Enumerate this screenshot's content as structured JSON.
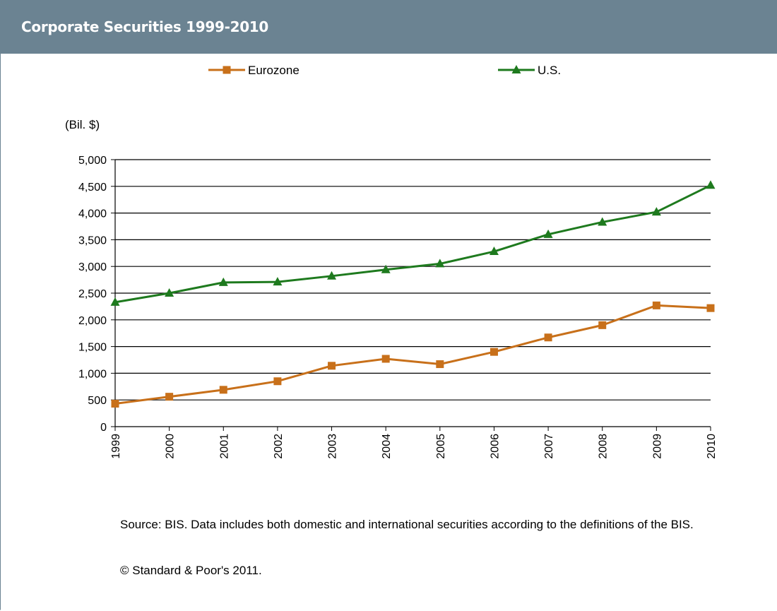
{
  "header": {
    "title": "Corporate Securities 1999-2010"
  },
  "footer": {
    "source": "Source: BIS. Data includes both domestic and international securities according to the definitions of the BIS.",
    "copyright": "© Standard & Poor's 2011."
  },
  "colors": {
    "header_bg": "#6b8392",
    "eurozone": "#c8701a",
    "us": "#1e7a1e"
  },
  "chart_data": {
    "type": "line",
    "title": "Corporate Securities 1999-2010",
    "ylabel": "(Bil. $)",
    "xlabel": "",
    "x": [
      "1999",
      "2000",
      "2001",
      "2002",
      "2003",
      "2004",
      "2005",
      "2006",
      "2007",
      "2008",
      "2009",
      "2010"
    ],
    "ylim": [
      0,
      5000
    ],
    "yticks": [
      "0",
      "500",
      "1,000",
      "1,500",
      "2,000",
      "2,500",
      "3,000",
      "3,500",
      "4,000",
      "4,500",
      "5,000"
    ],
    "grid": true,
    "legend_position": "top",
    "series": [
      {
        "name": "Eurozone",
        "marker": "square",
        "color": "#c8701a",
        "values": [
          430,
          560,
          690,
          850,
          1140,
          1270,
          1170,
          1400,
          1670,
          1900,
          2270,
          2220
        ]
      },
      {
        "name": "U.S.",
        "marker": "triangle",
        "color": "#1e7a1e",
        "values": [
          2330,
          2500,
          2700,
          2710,
          2820,
          2940,
          3050,
          3280,
          3600,
          3830,
          4020,
          4520
        ]
      }
    ]
  }
}
